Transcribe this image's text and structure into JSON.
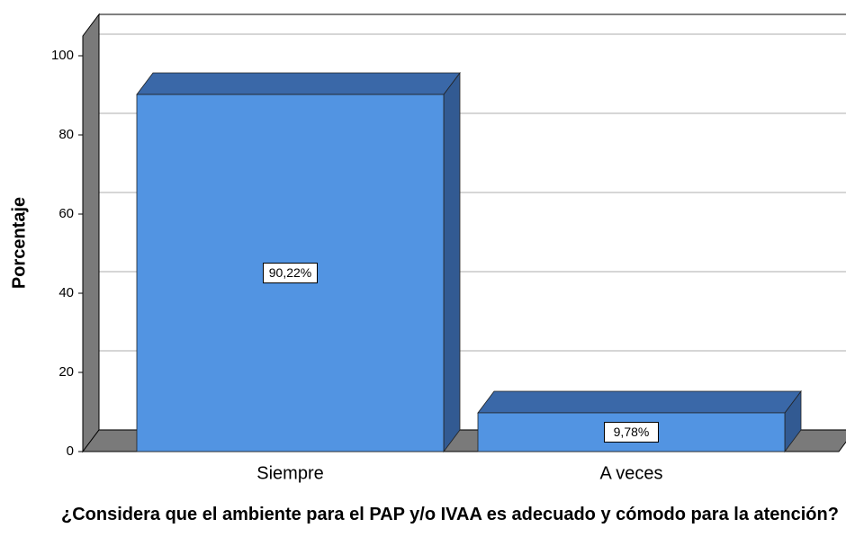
{
  "chart_data": {
    "type": "bar3d",
    "categories": [
      "Siempre",
      "A veces"
    ],
    "values": [
      90.22,
      9.78
    ],
    "value_labels": [
      "90,22%",
      "9,78%"
    ],
    "color": "#5294e2",
    "y_label": "Porcentaje",
    "x_label": "¿Considera que el ambiente para el PAP y/o IVAA es adecuado y cómodo para la atención?",
    "ylim": [
      0,
      105
    ],
    "yticks": [
      0,
      20,
      40,
      60,
      80,
      100
    ],
    "grid": true
  }
}
